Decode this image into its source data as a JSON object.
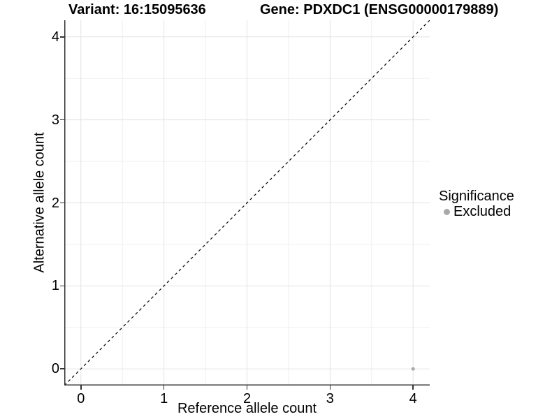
{
  "title": {
    "variant": "Variant: 16:15095636",
    "gene": "Gene: PDXDC1 (ENSG00000179889)"
  },
  "axes": {
    "x_label": "Reference allele count",
    "y_label": "Alternative allele count"
  },
  "legend": {
    "title": "Significance",
    "items": [
      {
        "label": "Excluded",
        "color": "#a9a9a9"
      }
    ]
  },
  "colors": {
    "background": "#ffffff",
    "grid_major": "#e3e3e3",
    "grid_minor": "#f0f0f0",
    "axis_line": "#333333",
    "text": "#000000",
    "point": "#a9a9a9",
    "reference_line": "#000000"
  },
  "chart_data": {
    "type": "scatter",
    "title": "Variant: 16:15095636    Gene: PDXDC1 (ENSG00000179889)",
    "xlabel": "Reference allele count",
    "ylabel": "Alternative allele count",
    "xlim": [
      -0.2,
      4.2
    ],
    "ylim": [
      -0.2,
      4.2
    ],
    "x_ticks": [
      0,
      1,
      2,
      3,
      4
    ],
    "y_ticks": [
      0,
      1,
      2,
      3,
      4
    ],
    "x_minor_ticks": [
      0.5,
      1.5,
      2.5,
      3.5
    ],
    "y_minor_ticks": [
      0.5,
      1.5,
      2.5,
      3.5
    ],
    "grid": true,
    "legend_position": "right",
    "legend_title": "Significance",
    "series": [
      {
        "name": "Excluded",
        "color": "#a9a9a9",
        "point_radius": 2.5,
        "points": [
          {
            "x": 4,
            "y": 0
          }
        ]
      }
    ],
    "reference_line": {
      "kind": "diagonal-identity",
      "style": "dashed",
      "color": "#000000",
      "from": [
        -0.2,
        -0.2
      ],
      "to": [
        4.2,
        4.2
      ]
    }
  }
}
